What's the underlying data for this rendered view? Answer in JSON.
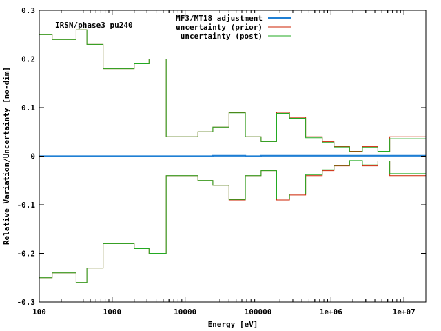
{
  "chart_data": {
    "type": "line",
    "title": "",
    "xlabel": "Energy [eV]",
    "ylabel": "Relative Variation/Uncertainty [no-dim]",
    "annotation": "IRSN/phase3 pu240",
    "x_scale": "log",
    "xlim": [
      100,
      20000000
    ],
    "ylim": [
      -0.3,
      0.3
    ],
    "x_ticks": [
      {
        "value": 100,
        "label": "100"
      },
      {
        "value": 1000,
        "label": "1000"
      },
      {
        "value": 10000,
        "label": "10000"
      },
      {
        "value": 100000,
        "label": "100000"
      },
      {
        "value": 1000000,
        "label": "1e+06"
      },
      {
        "value": 10000000,
        "label": "1e+07"
      }
    ],
    "y_ticks": [
      {
        "value": -0.3,
        "label": "-0.3"
      },
      {
        "value": -0.2,
        "label": "-0.2"
      },
      {
        "value": -0.1,
        "label": "-0.1"
      },
      {
        "value": 0,
        "label": "0"
      },
      {
        "value": 0.1,
        "label": "0.1"
      },
      {
        "value": 0.2,
        "label": "0.2"
      },
      {
        "value": 0.3,
        "label": "0.3"
      }
    ],
    "legend_position": "top-right",
    "bin_edges": [
      100,
      150,
      320,
      450,
      750,
      2000,
      3200,
      5500,
      15000,
      24000,
      40000,
      67000,
      110000,
      180000,
      270000,
      450000,
      760000,
      1100000,
      1800000,
      2700000,
      4400000,
      6400000,
      20000000
    ],
    "series": [
      {
        "name": "MF3/MT18 adjustment",
        "color": "#1f7fd4",
        "style": "step",
        "symmetric": false,
        "values": [
          0,
          0,
          0,
          0,
          0,
          0,
          0,
          0,
          0,
          0.001,
          0.001,
          0,
          0.001,
          0.001,
          0.001,
          0.001,
          0.001,
          0.001,
          0.001,
          0.001,
          0.001,
          0.001
        ]
      },
      {
        "name": "uncertainty (prior)",
        "color": "#cc2200",
        "style": "step",
        "symmetric": true,
        "values": [
          0.25,
          0.24,
          0.26,
          0.23,
          0.18,
          0.19,
          0.2,
          0.04,
          0.05,
          0.06,
          0.09,
          0.04,
          0.03,
          0.09,
          0.08,
          0.04,
          0.03,
          0.02,
          0.01,
          0.02,
          0.01,
          0.04
        ]
      },
      {
        "name": "uncertainty (post)",
        "color": "#22aa22",
        "style": "step",
        "symmetric": true,
        "values": [
          0.25,
          0.24,
          0.26,
          0.23,
          0.18,
          0.19,
          0.2,
          0.04,
          0.05,
          0.06,
          0.089,
          0.04,
          0.03,
          0.088,
          0.078,
          0.038,
          0.028,
          0.019,
          0.009,
          0.018,
          0.01,
          0.036
        ]
      }
    ]
  }
}
